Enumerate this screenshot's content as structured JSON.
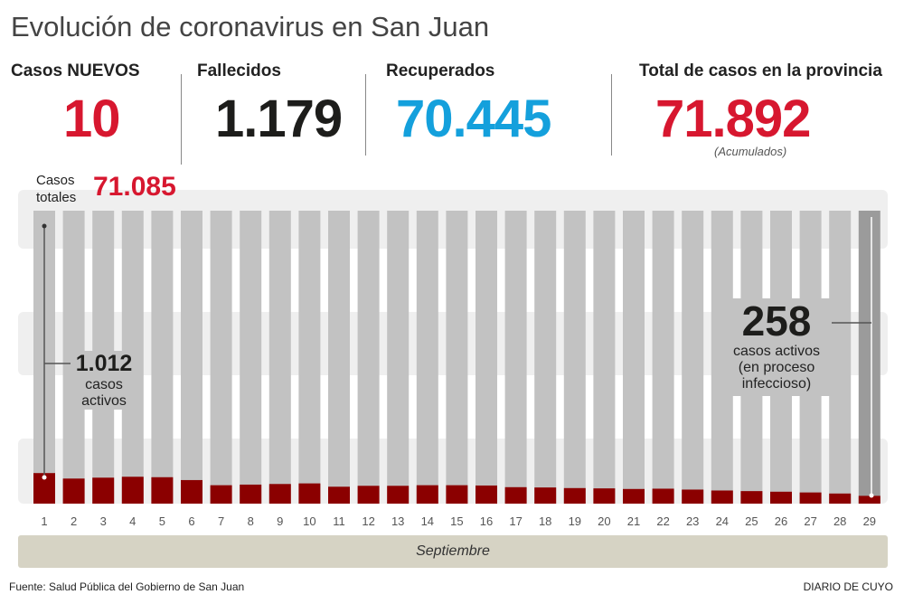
{
  "title": "Evolución de coronavirus en San Juan",
  "stats": {
    "nuevos": {
      "label": "Casos NUEVOS",
      "value": "10"
    },
    "fallecidos": {
      "label": "Fallecidos",
      "value": "1.179"
    },
    "recuperados": {
      "label": "Recuperados",
      "value": "70.445"
    },
    "total": {
      "label": "Total de casos en la provincia",
      "value": "71.892",
      "note": "(Acumulados)"
    }
  },
  "colors": {
    "red": "#d7172f",
    "blue": "#14a0dc",
    "dark": "#1d1d1b",
    "active_bar": "#8b0000",
    "total_bar": "#c2c2c2",
    "last_bar": "#9b9b9b",
    "month_band": "#d6d3c4"
  },
  "chart_data": {
    "type": "bar",
    "categories": [
      "1",
      "2",
      "3",
      "4",
      "5",
      "6",
      "7",
      "8",
      "9",
      "10",
      "11",
      "12",
      "13",
      "14",
      "15",
      "16",
      "17",
      "18",
      "19",
      "20",
      "21",
      "22",
      "23",
      "24",
      "25",
      "26",
      "27",
      "28",
      "29"
    ],
    "series": [
      {
        "name": "casos activos",
        "values": [
          1012,
          830,
          860,
          890,
          875,
          780,
          610,
          630,
          650,
          670,
          560,
          590,
          590,
          610,
          610,
          600,
          545,
          535,
          515,
          505,
          485,
          495,
          465,
          435,
          415,
          395,
          370,
          335,
          258
        ]
      }
    ],
    "xlabel": "Septiembre",
    "ylim": [
      0,
      9700
    ],
    "annotations": {
      "casos_totales_label_1": "Casos",
      "casos_totales_label_2": "totales",
      "casos_totales_value": "71.085",
      "first_value": "1.012",
      "first_label_1": "casos",
      "first_label_2": "activos",
      "last_value": "258",
      "last_label_1": "casos activos",
      "last_label_2": "(en proceso",
      "last_label_3": "infeccioso)"
    }
  },
  "footer": {
    "source": "Fuente: Salud Pública del Gobierno de San Juan",
    "brand": "DIARIO DE CUYO"
  }
}
